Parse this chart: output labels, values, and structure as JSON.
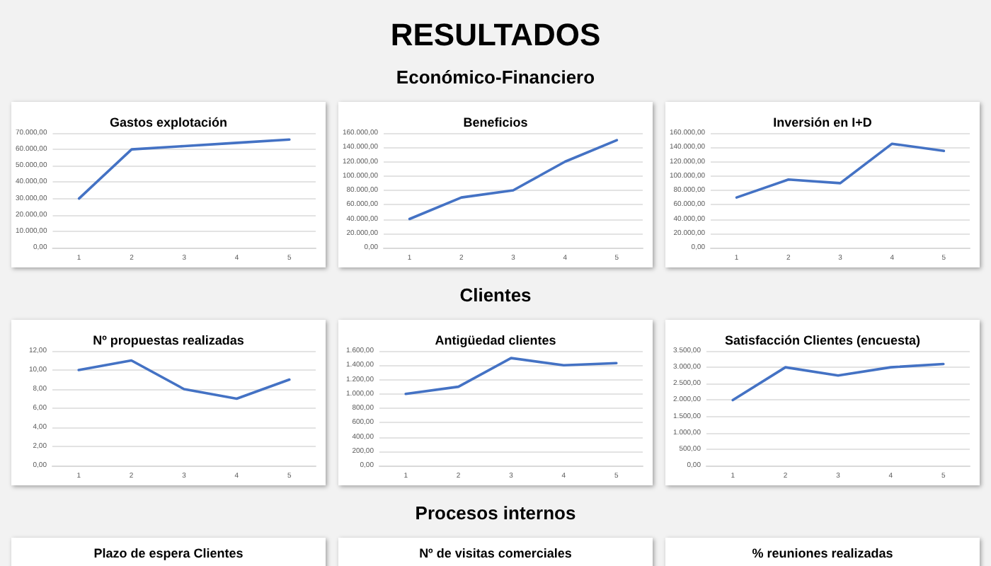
{
  "chart_data": [
    {
      "type": "other",
      "title": "RESULTADOS",
      "subtitle": "Económico-Financiero"
    },
    {
      "type": "line",
      "title": "Gastos explotación",
      "categories": [
        "1",
        "2",
        "3",
        "4",
        "5"
      ],
      "values": [
        30000,
        60000,
        62000,
        64000,
        66000
      ],
      "color": "#4472c4",
      "ylim": [
        0,
        70000
      ],
      "yticks": [
        {
          "value": 0,
          "label": "0,00"
        },
        {
          "value": 10000,
          "label": "10.000,00"
        },
        {
          "value": 20000,
          "label": "20.000,00"
        },
        {
          "value": 30000,
          "label": "30.000,00"
        },
        {
          "value": 40000,
          "label": "40.000,00"
        },
        {
          "value": 50000,
          "label": "50.000,00"
        },
        {
          "value": 60000,
          "label": "60.000,00"
        },
        {
          "value": 70000,
          "label": "70.000,00"
        }
      ],
      "grid": "y",
      "marker": "none"
    },
    {
      "type": "line",
      "title": "Beneficios",
      "categories": [
        "1",
        "2",
        "3",
        "4",
        "5"
      ],
      "values": [
        40000,
        70000,
        80000,
        120000,
        150000
      ],
      "color": "#4472c4",
      "ylim": [
        0,
        160000
      ],
      "yticks": [
        {
          "value": 0,
          "label": "0,00"
        },
        {
          "value": 20000,
          "label": "20.000,00"
        },
        {
          "value": 40000,
          "label": "40.000,00"
        },
        {
          "value": 60000,
          "label": "60.000,00"
        },
        {
          "value": 80000,
          "label": "80.000,00"
        },
        {
          "value": 100000,
          "label": "100.000,00"
        },
        {
          "value": 120000,
          "label": "120.000,00"
        },
        {
          "value": 140000,
          "label": "140.000,00"
        },
        {
          "value": 160000,
          "label": "160.000,00"
        }
      ],
      "grid": "y",
      "marker": "none"
    },
    {
      "type": "line",
      "title": "Inversión en I+D",
      "categories": [
        "1",
        "2",
        "3",
        "4",
        "5"
      ],
      "values": [
        70000,
        95000,
        90000,
        145000,
        135000
      ],
      "color": "#4472c4",
      "ylim": [
        0,
        160000
      ],
      "yticks": [
        {
          "value": 0,
          "label": "0,00"
        },
        {
          "value": 20000,
          "label": "20.000,00"
        },
        {
          "value": 40000,
          "label": "40.000,00"
        },
        {
          "value": 60000,
          "label": "60.000,00"
        },
        {
          "value": 80000,
          "label": "80.000,00"
        },
        {
          "value": 100000,
          "label": "100.000,00"
        },
        {
          "value": 120000,
          "label": "120.000,00"
        },
        {
          "value": 140000,
          "label": "140.000,00"
        },
        {
          "value": 160000,
          "label": "160.000,00"
        }
      ],
      "grid": "y",
      "marker": "none"
    },
    {
      "type": "other",
      "subtitle": "Clientes"
    },
    {
      "type": "line",
      "title": "Nº propuestas realizadas",
      "categories": [
        "1",
        "2",
        "3",
        "4",
        "5"
      ],
      "values": [
        10,
        11,
        8,
        7,
        9
      ],
      "color": "#4472c4",
      "ylim": [
        0,
        12
      ],
      "yticks": [
        {
          "value": 0,
          "label": "0,00"
        },
        {
          "value": 2,
          "label": "2,00"
        },
        {
          "value": 4,
          "label": "4,00"
        },
        {
          "value": 6,
          "label": "6,00"
        },
        {
          "value": 8,
          "label": "8,00"
        },
        {
          "value": 10,
          "label": "10,00"
        },
        {
          "value": 12,
          "label": "12,00"
        }
      ],
      "grid": "y",
      "marker": "none"
    },
    {
      "type": "line",
      "title": "Antigüedad clientes",
      "categories": [
        "1",
        "2",
        "3",
        "4",
        "5"
      ],
      "values": [
        1000,
        1100,
        1500,
        1400,
        1430
      ],
      "color": "#4472c4",
      "ylim": [
        0,
        1600
      ],
      "yticks": [
        {
          "value": 0,
          "label": "0,00"
        },
        {
          "value": 200,
          "label": "200,00"
        },
        {
          "value": 400,
          "label": "400,00"
        },
        {
          "value": 600,
          "label": "600,00"
        },
        {
          "value": 800,
          "label": "800,00"
        },
        {
          "value": 1000,
          "label": "1.000,00"
        },
        {
          "value": 1200,
          "label": "1.200,00"
        },
        {
          "value": 1400,
          "label": "1.400,00"
        },
        {
          "value": 1600,
          "label": "1.600,00"
        }
      ],
      "grid": "y",
      "marker": "none"
    },
    {
      "type": "line",
      "title": "Satisfacción Clientes (encuesta)",
      "categories": [
        "1",
        "2",
        "3",
        "4",
        "5"
      ],
      "values": [
        2000,
        3000,
        2750,
        3000,
        3100
      ],
      "color": "#4472c4",
      "ylim": [
        0,
        3500
      ],
      "yticks": [
        {
          "value": 0,
          "label": "0,00"
        },
        {
          "value": 500,
          "label": "500,00"
        },
        {
          "value": 1000,
          "label": "1.000,00"
        },
        {
          "value": 1500,
          "label": "1.500,00"
        },
        {
          "value": 2000,
          "label": "2.000,00"
        },
        {
          "value": 2500,
          "label": "2.500,00"
        },
        {
          "value": 3000,
          "label": "3.000,00"
        },
        {
          "value": 3500,
          "label": "3.500,00"
        }
      ],
      "grid": "y",
      "marker": "none"
    },
    {
      "type": "other",
      "subtitle": "Procesos internos"
    },
    {
      "type": "other",
      "title": "Plazo de espera Clientes"
    },
    {
      "type": "other",
      "title": "Nº de visitas comerciales"
    },
    {
      "type": "other",
      "title": "% reuniones realizadas"
    }
  ]
}
